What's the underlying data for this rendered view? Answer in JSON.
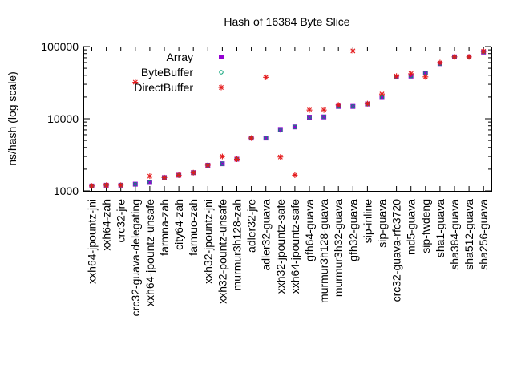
{
  "chart_data": {
    "type": "scatter",
    "title": "Hash of 16384 Byte Slice",
    "xlabel": "",
    "ylabel": "ns/hash (log scale)",
    "y_scale": "log",
    "ylim": [
      1000,
      100000
    ],
    "y_ticks": [
      1000,
      10000,
      100000
    ],
    "y_tick_labels": [
      "1000",
      "10000",
      "100000"
    ],
    "grid": false,
    "legend_position": "top-left",
    "categories": [
      "xxh64-jpountz-jni",
      "xxh64-zah",
      "crc32-jre",
      "crc32-guava-delegating",
      "xxh64-jpountz-unsafe",
      "farmna-zah",
      "city64-zah",
      "farmuo-zah",
      "xxh32-jpountz-jni",
      "xxh32-pountz-unsafe",
      "murmur3h128-zah",
      "adler32-jre",
      "adler32-guava",
      "xxh32-jpountz-safe",
      "xxh64-jpountz-safe",
      "gfh64-guava",
      "murmur3h128-guava",
      "murmur3h32-guava",
      "gfh32-guava",
      "sip-inline",
      "sip-guava",
      "crc32-guava-rfc3720",
      "md5-guava",
      "sip-fwdeng",
      "sha1-guava",
      "sha384-guava",
      "sha512-guava",
      "sha256-guava"
    ],
    "series": [
      {
        "name": "Array",
        "marker": "filled-square",
        "color": "#9400d3",
        "values": [
          1170,
          1200,
          1200,
          1240,
          1310,
          1530,
          1650,
          1790,
          2270,
          2380,
          2750,
          5400,
          5400,
          7100,
          7700,
          10500,
          10600,
          14800,
          14800,
          16000,
          19700,
          37800,
          39000,
          43000,
          58000,
          72000,
          72000,
          84000
        ]
      },
      {
        "name": "ByteBuffer",
        "marker": "open-circle",
        "color": "#009e73",
        "values": [
          1170,
          1200,
          1200,
          1240,
          1310,
          1530,
          1650,
          1790,
          2270,
          2380,
          2750,
          5400,
          5400,
          6900,
          7700,
          10500,
          10600,
          14800,
          14800,
          16000,
          19700,
          37800,
          39000,
          43000,
          58000,
          72000,
          72000,
          84000
        ]
      },
      {
        "name": "DirectBuffer",
        "marker": "asterisk",
        "color": "#e41a1c",
        "values": [
          1170,
          1200,
          1200,
          32000,
          1600,
          1530,
          1650,
          1790,
          2270,
          3000,
          2750,
          5400,
          37500,
          2950,
          1650,
          13200,
          13200,
          15500,
          87000,
          16200,
          22000,
          39000,
          42000,
          38000,
          60000,
          72000,
          72000,
          86000
        ]
      }
    ]
  }
}
